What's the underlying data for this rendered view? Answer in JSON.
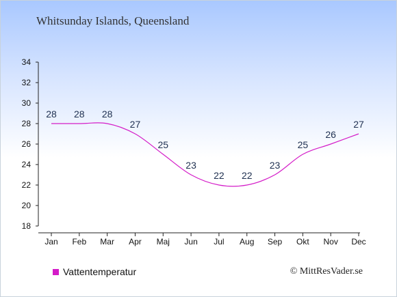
{
  "title": "Whitsunday Islands, Queensland",
  "legend_label": "Vattentemperatur",
  "credit": "© MittResVader.se",
  "colors": {
    "series": "#d41cc8",
    "axis": "#222222"
  },
  "chart_data": {
    "type": "line",
    "categories": [
      "Jan",
      "Feb",
      "Mar",
      "Apr",
      "Maj",
      "Jun",
      "Jul",
      "Aug",
      "Sep",
      "Okt",
      "Nov",
      "Dec"
    ],
    "series": [
      {
        "name": "Vattentemperatur",
        "values": [
          28,
          28,
          28,
          27,
          25,
          23,
          22,
          22,
          23,
          25,
          26,
          27
        ]
      }
    ],
    "ylim": [
      18,
      34
    ],
    "yticks": [
      18,
      20,
      22,
      24,
      26,
      28,
      30,
      32,
      34
    ],
    "grid": false,
    "legend": "bottom-left"
  }
}
